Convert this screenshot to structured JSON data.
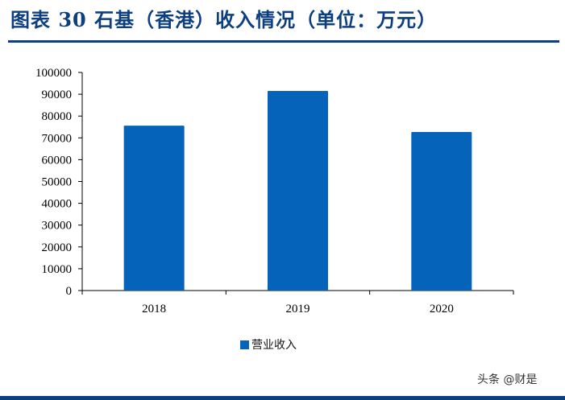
{
  "header": {
    "title": "图表 30  石基（香港）收入情况（单位：万元）"
  },
  "chart_data": {
    "type": "bar",
    "title": "石基（香港）收入情况（单位：万元）",
    "categories": [
      "2018",
      "2019",
      "2020"
    ],
    "series": [
      {
        "name": "营业收入",
        "values": [
          75600,
          91500,
          72700
        ],
        "color": "#0563b9"
      }
    ],
    "xlabel": "",
    "ylabel": "",
    "ylim": [
      0,
      100000
    ],
    "yticks": [
      0,
      10000,
      20000,
      30000,
      40000,
      50000,
      60000,
      70000,
      80000,
      90000,
      100000
    ],
    "grid": false,
    "legend_position": "bottom"
  },
  "legend": {
    "label": "营业收入"
  },
  "watermark": "头条 @财是"
}
